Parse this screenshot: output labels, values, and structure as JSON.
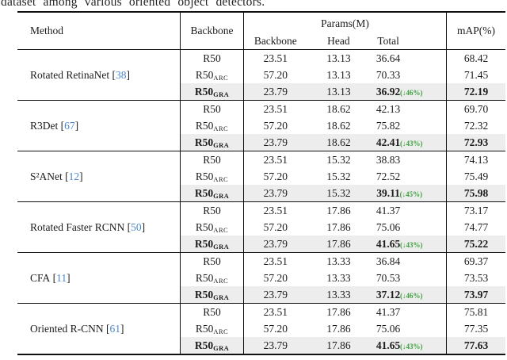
{
  "caption": "dataset among various oriented object detectors.",
  "colors": {
    "cite_blue": "#4d87cf",
    "note_green": "#3da23d",
    "highlight_gray": "#ededed"
  },
  "punct": {
    "open_bracket": "[",
    "close_bracket": "]"
  },
  "header": {
    "method": "Method",
    "backbone": "Backbone",
    "params": "Params(M)",
    "params_sub": [
      "Backbone",
      "Head",
      "Total"
    ],
    "map": "mAP(%)"
  },
  "groups": [
    {
      "method": "Rotated RetinaNet",
      "cite": "38",
      "rows": [
        {
          "bb": "R50",
          "bb_sub": "",
          "p_backbone": "23.51",
          "p_head": "13.13",
          "p_total": "36.64",
          "note": "",
          "map": "68.42",
          "hl": false
        },
        {
          "bb": "R50",
          "bb_sub": "ARC",
          "p_backbone": "57.20",
          "p_head": "13.13",
          "p_total": "70.33",
          "note": "",
          "map": "71.45",
          "hl": false
        },
        {
          "bb": "R50",
          "bb_sub": "GRA",
          "p_backbone": "23.79",
          "p_head": "13.13",
          "p_total": "36.92",
          "note": "(↓46%)",
          "map": "72.19",
          "hl": true
        }
      ]
    },
    {
      "method": "R3Det",
      "cite": "67",
      "rows": [
        {
          "bb": "R50",
          "bb_sub": "",
          "p_backbone": "23.51",
          "p_head": "18.62",
          "p_total": "42.13",
          "note": "",
          "map": "69.70",
          "hl": false
        },
        {
          "bb": "R50",
          "bb_sub": "ARC",
          "p_backbone": "57.20",
          "p_head": "18.62",
          "p_total": "75.82",
          "note": "",
          "map": "72.32",
          "hl": false
        },
        {
          "bb": "R50",
          "bb_sub": "GRA",
          "p_backbone": "23.79",
          "p_head": "18.62",
          "p_total": "42.41",
          "note": "(↓43%)",
          "map": "72.93",
          "hl": true
        }
      ]
    },
    {
      "method": "S²ANet",
      "cite": "12",
      "rows": [
        {
          "bb": "R50",
          "bb_sub": "",
          "p_backbone": "23.51",
          "p_head": "15.32",
          "p_total": "38.83",
          "note": "",
          "map": "74.13",
          "hl": false
        },
        {
          "bb": "R50",
          "bb_sub": "ARC",
          "p_backbone": "57.20",
          "p_head": "15.32",
          "p_total": "72.52",
          "note": "",
          "map": "75.49",
          "hl": false
        },
        {
          "bb": "R50",
          "bb_sub": "GRA",
          "p_backbone": "23.79",
          "p_head": "15.32",
          "p_total": "39.11",
          "note": "(↓45%)",
          "map": "75.98",
          "hl": true
        }
      ]
    },
    {
      "method": "Rotated Faster RCNN",
      "cite": "50",
      "rows": [
        {
          "bb": "R50",
          "bb_sub": "",
          "p_backbone": "23.51",
          "p_head": "17.86",
          "p_total": "41.37",
          "note": "",
          "map": "73.17",
          "hl": false
        },
        {
          "bb": "R50",
          "bb_sub": "ARC",
          "p_backbone": "57.20",
          "p_head": "17.86",
          "p_total": "75.06",
          "note": "",
          "map": "74.77",
          "hl": false
        },
        {
          "bb": "R50",
          "bb_sub": "GRA",
          "p_backbone": "23.79",
          "p_head": "17.86",
          "p_total": "41.65",
          "note": "(↓43%)",
          "map": "75.22",
          "hl": true
        }
      ]
    },
    {
      "method": "CFA",
      "cite": "11",
      "rows": [
        {
          "bb": "R50",
          "bb_sub": "",
          "p_backbone": "23.51",
          "p_head": "13.33",
          "p_total": "36.84",
          "note": "",
          "map": "69.37",
          "hl": false
        },
        {
          "bb": "R50",
          "bb_sub": "ARC",
          "p_backbone": "57.20",
          "p_head": "13.33",
          "p_total": "70.53",
          "note": "",
          "map": "73.53",
          "hl": false
        },
        {
          "bb": "R50",
          "bb_sub": "GRA",
          "p_backbone": "23.79",
          "p_head": "13.33",
          "p_total": "37.12",
          "note": "(↓46%)",
          "map": "73.97",
          "hl": true
        }
      ]
    },
    {
      "method": "Oriented R-CNN",
      "cite": "61",
      "rows": [
        {
          "bb": "R50",
          "bb_sub": "",
          "p_backbone": "23.51",
          "p_head": "17.86",
          "p_total": "41.37",
          "note": "",
          "map": "75.81",
          "hl": false
        },
        {
          "bb": "R50",
          "bb_sub": "ARC",
          "p_backbone": "57.20",
          "p_head": "17.86",
          "p_total": "75.06",
          "note": "",
          "map": "77.35",
          "hl": false
        },
        {
          "bb": "R50",
          "bb_sub": "GRA",
          "p_backbone": "23.79",
          "p_head": "17.86",
          "p_total": "41.65",
          "note": "(↓43%)",
          "map": "77.63",
          "hl": true
        }
      ]
    }
  ]
}
